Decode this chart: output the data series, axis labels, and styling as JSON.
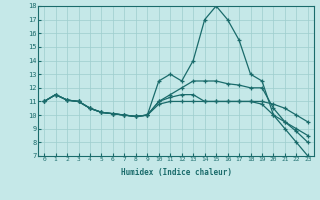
{
  "xlabel": "Humidex (Indice chaleur)",
  "xlim": [
    -0.5,
    23.5
  ],
  "ylim": [
    7,
    18
  ],
  "yticks": [
    7,
    8,
    9,
    10,
    11,
    12,
    13,
    14,
    15,
    16,
    17,
    18
  ],
  "xticks": [
    0,
    1,
    2,
    3,
    4,
    5,
    6,
    7,
    8,
    9,
    10,
    11,
    12,
    13,
    14,
    15,
    16,
    17,
    18,
    19,
    20,
    21,
    22,
    23
  ],
  "bg_color": "#c5e8e8",
  "grid_color": "#9ecece",
  "line_color": "#1a6b6b",
  "lines": [
    {
      "x": [
        0,
        1,
        2,
        3,
        4,
        5,
        6,
        7,
        8,
        9,
        10,
        11,
        12,
        13,
        14,
        15,
        16,
        17,
        18,
        19,
        20,
        21,
        22,
        23
      ],
      "y": [
        11.0,
        11.5,
        11.1,
        11.0,
        10.5,
        10.2,
        10.1,
        10.0,
        9.9,
        10.0,
        12.5,
        13.0,
        12.5,
        14.0,
        17.0,
        18.0,
        17.0,
        15.5,
        13.0,
        12.5,
        10.0,
        9.0,
        8.0,
        7.0
      ]
    },
    {
      "x": [
        0,
        1,
        2,
        3,
        4,
        5,
        6,
        7,
        8,
        9,
        10,
        11,
        12,
        13,
        14,
        15,
        16,
        17,
        18,
        19,
        20,
        21,
        22,
        23
      ],
      "y": [
        11.0,
        11.5,
        11.1,
        11.0,
        10.5,
        10.2,
        10.1,
        10.0,
        9.9,
        10.0,
        11.0,
        11.5,
        12.0,
        12.5,
        12.5,
        12.5,
        12.3,
        12.2,
        12.0,
        12.0,
        10.5,
        9.5,
        8.8,
        8.0
      ]
    },
    {
      "x": [
        0,
        1,
        2,
        3,
        4,
        5,
        6,
        7,
        8,
        9,
        10,
        11,
        12,
        13,
        14,
        15,
        16,
        17,
        18,
        19,
        20,
        21,
        22,
        23
      ],
      "y": [
        11.0,
        11.5,
        11.1,
        11.0,
        10.5,
        10.2,
        10.1,
        10.0,
        9.9,
        10.0,
        11.0,
        11.3,
        11.5,
        11.5,
        11.0,
        11.0,
        11.0,
        11.0,
        11.0,
        11.0,
        10.8,
        10.5,
        10.0,
        9.5
      ]
    },
    {
      "x": [
        0,
        1,
        2,
        3,
        4,
        5,
        6,
        7,
        8,
        9,
        10,
        11,
        12,
        13,
        14,
        15,
        16,
        17,
        18,
        19,
        20,
        21,
        22,
        23
      ],
      "y": [
        11.0,
        11.5,
        11.1,
        11.0,
        10.5,
        10.2,
        10.1,
        10.0,
        9.9,
        10.0,
        10.8,
        11.0,
        11.0,
        11.0,
        11.0,
        11.0,
        11.0,
        11.0,
        11.0,
        10.8,
        10.0,
        9.5,
        9.0,
        8.5
      ]
    }
  ]
}
